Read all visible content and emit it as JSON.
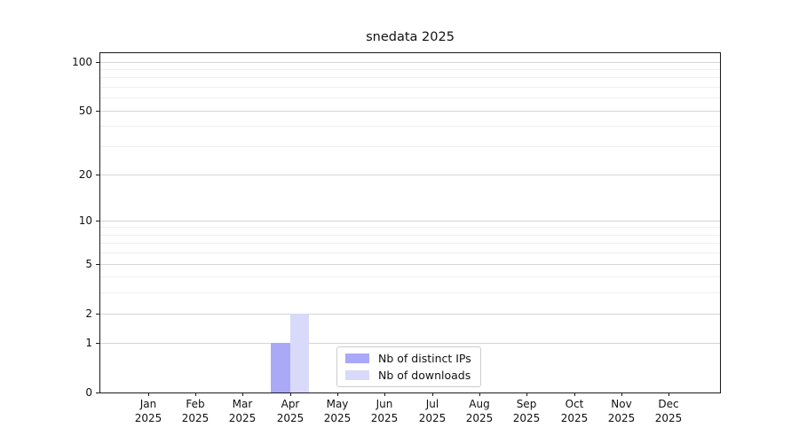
{
  "title": "snedata 2025",
  "colors": {
    "bar_distinct_ips": "#a9a9f7",
    "bar_downloads": "#d9d9fa",
    "grid_major": "#d5d5d5",
    "grid_minor": "#efefef",
    "axis_frame": "#1a1a1a",
    "legend_border": "#cccccc",
    "background": "#ffffff"
  },
  "chart_data": {
    "type": "bar",
    "title": "snedata 2025",
    "x_tick_months": [
      "Jan",
      "Feb",
      "Mar",
      "Apr",
      "May",
      "Jun",
      "Jul",
      "Aug",
      "Sep",
      "Oct",
      "Nov",
      "Dec"
    ],
    "x_tick_year": "2025",
    "series": [
      {
        "name": "Nb of distinct IPs",
        "color": "#a9a9f7",
        "values": [
          0,
          0,
          0,
          1,
          0,
          0,
          0,
          0,
          0,
          0,
          0,
          0
        ]
      },
      {
        "name": "Nb of downloads",
        "color": "#d9d9fa",
        "values": [
          0,
          0,
          0,
          2,
          0,
          0,
          0,
          0,
          0,
          0,
          0,
          0
        ]
      }
    ],
    "y_scale": "log1p",
    "ylim": [
      0,
      100
    ],
    "y_major_ticks": [
      0,
      1,
      2,
      5,
      10,
      20,
      50,
      100
    ],
    "y_minor_gridlines": [
      3,
      4,
      6,
      7,
      8,
      9,
      30,
      40,
      60,
      70,
      80,
      90
    ],
    "grid": "horizontal-only",
    "legend_position": "lower center",
    "legend_entries": [
      "Nb of distinct IPs",
      "Nb of downloads"
    ]
  }
}
